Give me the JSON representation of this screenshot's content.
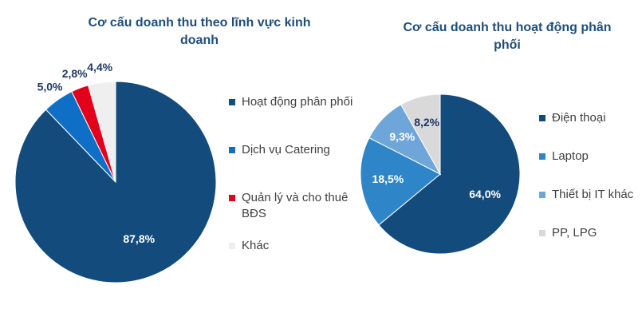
{
  "chart_data": [
    {
      "type": "pie",
      "title": "Cơ cấu doanh thu theo lĩnh vực kinh doanh",
      "categories": [
        "Hoạt động phân phối",
        "Dịch vụ Catering",
        "Quản lý và cho thuê BĐS",
        "Khác"
      ],
      "values": [
        87.8,
        5.0,
        2.8,
        4.4
      ],
      "value_labels": [
        "87,8%",
        "5,0%",
        "2,8%",
        "4,4%"
      ],
      "colors": [
        "#134b7d",
        "#0f6fc6",
        "#e3001b",
        "#efefef"
      ]
    },
    {
      "type": "pie",
      "title": "Cơ cấu doanh thu hoạt động phân phối",
      "categories": [
        "Điện thoại",
        "Laptop",
        "Thiết bị IT khác",
        "PP, LPG"
      ],
      "values": [
        64.0,
        18.5,
        9.3,
        8.2
      ],
      "value_labels": [
        "64,0%",
        "18,5%",
        "9,3%",
        "8,2%"
      ],
      "colors": [
        "#134b7d",
        "#2e86c8",
        "#6ea6d9",
        "#d9d9d9"
      ]
    }
  ]
}
